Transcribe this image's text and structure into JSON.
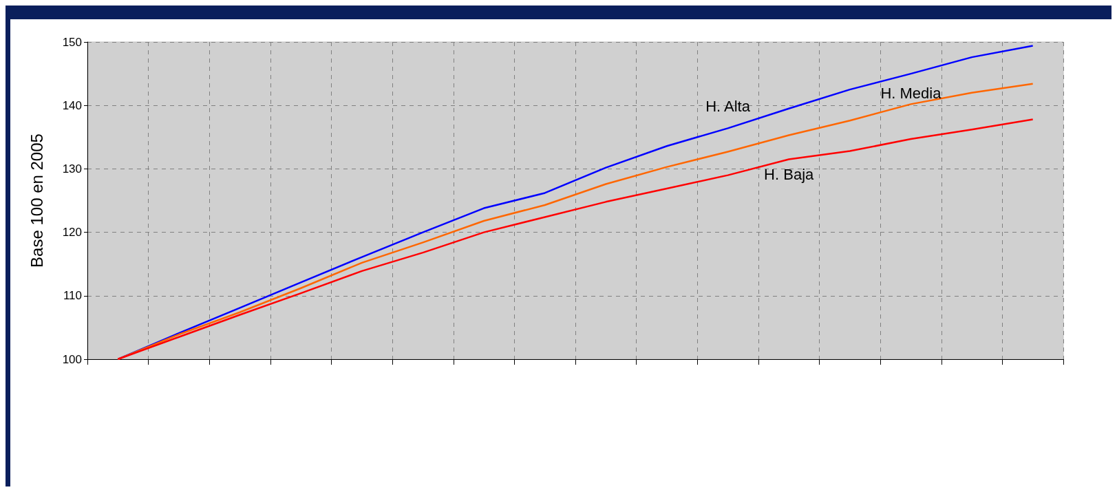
{
  "chart_data": {
    "type": "line",
    "ylabel": "Base 100 en 2005",
    "categories": [
      null,
      null,
      null,
      null,
      null,
      null,
      null,
      null,
      null,
      null,
      null,
      null,
      null,
      null,
      null,
      null
    ],
    "series": [
      {
        "name": "H. Alta",
        "color": "#0000ff",
        "values": [
          100,
          104.1,
          108.1,
          112.1,
          116.1,
          120.0,
          123.8,
          126.2,
          130.2,
          133.6,
          136.4,
          139.5,
          142.5,
          145.0,
          147.6,
          149.4
        ]
      },
      {
        "name": "H. Media",
        "color": "#ff6600",
        "values": [
          100,
          103.9,
          107.4,
          111.2,
          115.2,
          118.4,
          121.8,
          124.3,
          127.6,
          130.3,
          132.7,
          135.3,
          137.6,
          140.2,
          142.0,
          143.4
        ]
      },
      {
        "name": "H. Baja",
        "color": "#ff0000",
        "values": [
          100,
          103.5,
          107.0,
          110.4,
          113.9,
          116.8,
          120.0,
          122.4,
          124.8,
          126.9,
          129.0,
          131.5,
          132.8,
          134.7,
          136.2,
          137.8
        ]
      }
    ],
    "ylim": [
      100,
      150
    ],
    "yticks": [
      100,
      110,
      120,
      130,
      140,
      150
    ],
    "grid": true,
    "legend": false,
    "marker": "none",
    "line_style": "solid",
    "tick_labels": "y"
  }
}
